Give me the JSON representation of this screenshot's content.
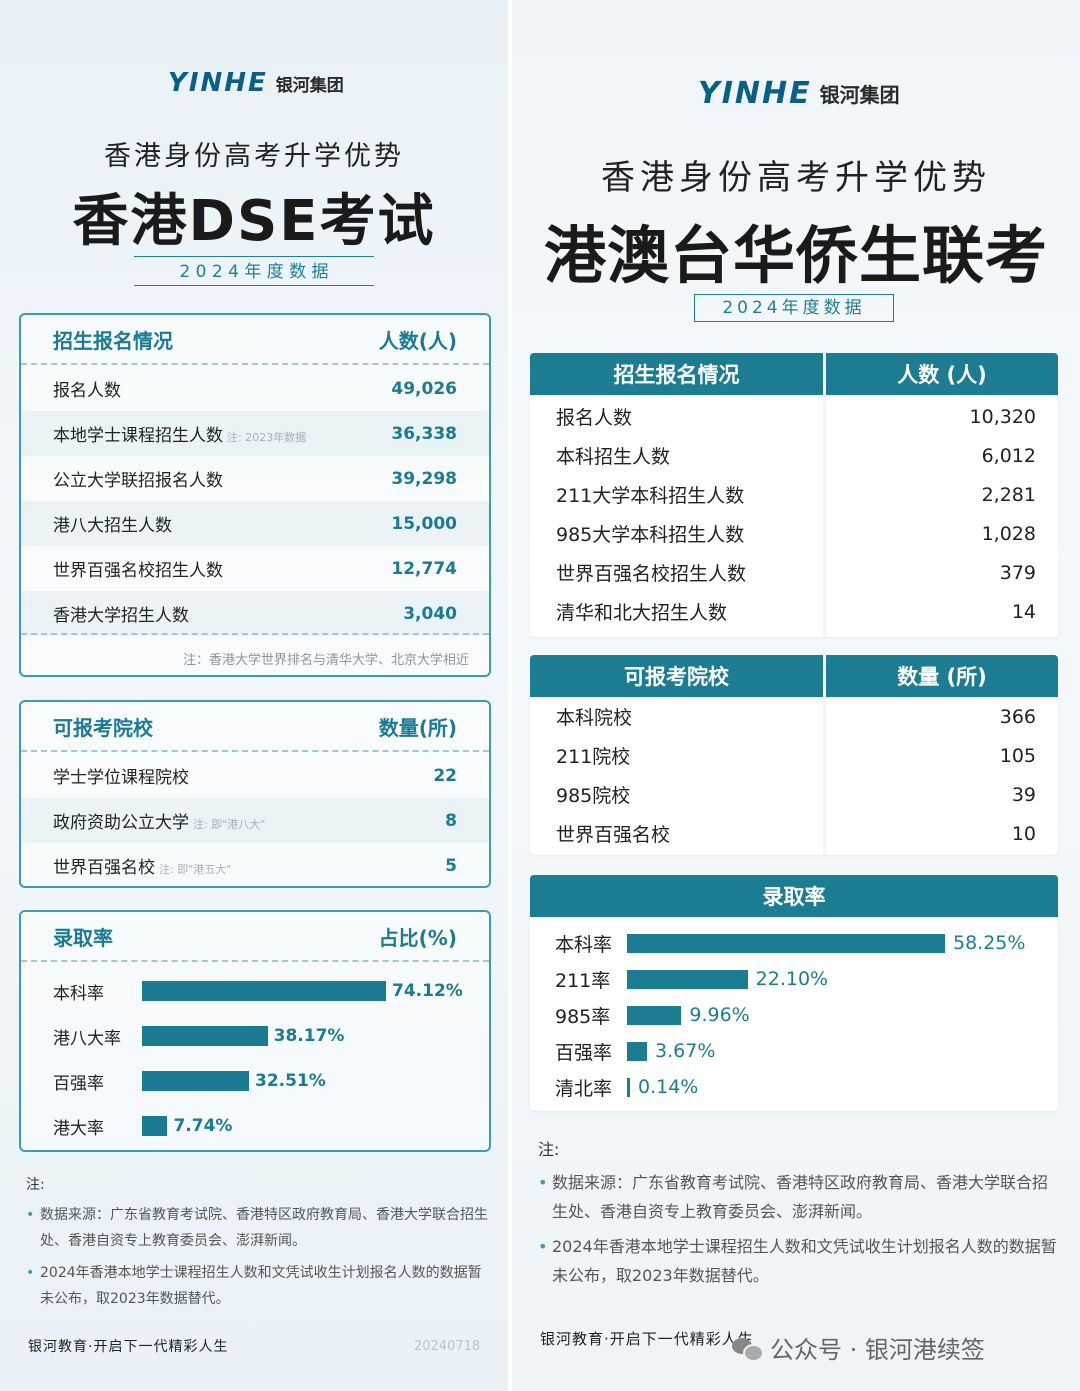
{
  "left": {
    "logo_mark": "YINHE",
    "logo_cn": "银河集团",
    "subtitle": "香港身份高考升学优势",
    "title": "香港DSE考试",
    "year_label": "2 0 2 4 年 度 数 据",
    "enroll": {
      "header_left": "招生报名情况",
      "header_right": "人数(人)",
      "rows": [
        {
          "label": "报名人数",
          "note": "",
          "value": "49,026"
        },
        {
          "label": "本地学士课程招生人数",
          "note": "注: 2023年数据",
          "value": "36,338"
        },
        {
          "label": "公立大学联招报名人数",
          "note": "",
          "value": "39,298"
        },
        {
          "label": "港八大招生人数",
          "note": "",
          "value": "15,000"
        },
        {
          "label": "世界百强名校招生人数",
          "note": "",
          "value": "12,774"
        },
        {
          "label": "香港大学招生人数",
          "note": "",
          "value": "3,040"
        }
      ],
      "footnote": "注：香港大学世界排名与清华大学、北京大学相近"
    },
    "schools": {
      "header_left": "可报考院校",
      "header_right": "数量(所)",
      "rows": [
        {
          "label": "学士学位课程院校",
          "note": "",
          "value": "22"
        },
        {
          "label": "政府资助公立大学",
          "note": "注: 即\"港八大\"",
          "value": "8"
        },
        {
          "label": "世界百强名校",
          "note": "注: 即\"港五大\"",
          "value": "5"
        }
      ]
    },
    "notes_title": "注:",
    "notes": [
      "数据来源：广东省教育考试院、香港特区政府教育局、香港大学联合招生处、香港自资专上教育委员会、澎湃新闻。",
      "2024年香港本地学士课程招生人数和文凭试收生计划报名人数的数据暂未公布，取2023年数据替代。"
    ],
    "slogan": "银河教育·开启下一代精彩人生",
    "date": "20240718"
  },
  "right": {
    "logo_mark": "YINHE",
    "logo_cn": "银河集团",
    "subtitle": "香港身份高考升学优势",
    "title": "港澳台华侨生联考",
    "year_label": "2024年度数据",
    "enroll": {
      "header_left": "招生报名情况",
      "header_right": "人数 (人)",
      "rows": [
        {
          "label": "报名人数",
          "value": "10,320"
        },
        {
          "label": "本科招生人数",
          "value": "6,012"
        },
        {
          "label": "211大学本科招生人数",
          "value": "2,281"
        },
        {
          "label": "985大学本科招生人数",
          "value": "1,028"
        },
        {
          "label": "世界百强名校招生人数",
          "value": "379"
        },
        {
          "label": "清华和北大招生人数",
          "value": "14"
        }
      ]
    },
    "schools": {
      "header_left": "可报考院校",
      "header_right": "数量 (所)",
      "rows": [
        {
          "label": "本科院校",
          "value": "366"
        },
        {
          "label": "211院校",
          "value": "105"
        },
        {
          "label": "985院校",
          "value": "39"
        },
        {
          "label": "世界百强名校",
          "value": "10"
        }
      ]
    },
    "notes_title": "注:",
    "notes": [
      "数据来源：广东省教育考试院、香港特区政府教育局、香港大学联合招生处、香港自资专上教育委员会、澎湃新闻。",
      "2024年香港本地学士课程招生人数和文凭试收生计划报名人数的数据暂未公布，取2023年数据替代。"
    ],
    "slogan": "银河教育·开启下一代精彩人生",
    "wechat": "公众号 · 银河港续签"
  },
  "colors": {
    "accent": "#1c7d92",
    "border": "#3d9cb2"
  },
  "chart_data": [
    {
      "type": "bar",
      "title": "录取率",
      "ylabel": "占比(%)",
      "categories": [
        "本科率",
        "港八大率",
        "百强率",
        "港大率"
      ],
      "values": [
        74.12,
        38.17,
        32.51,
        7.74
      ],
      "labels": [
        "74.12%",
        "38.17%",
        "32.51%",
        "7.74%"
      ]
    },
    {
      "type": "bar",
      "title": "录取率",
      "categories": [
        "本科率",
        "211率",
        "985率",
        "百强率",
        "清北率"
      ],
      "values": [
        58.25,
        22.1,
        9.96,
        3.67,
        0.14
      ],
      "labels": [
        "58.25%",
        "22.10%",
        "9.96%",
        "3.67%",
        "0.14%"
      ]
    }
  ]
}
